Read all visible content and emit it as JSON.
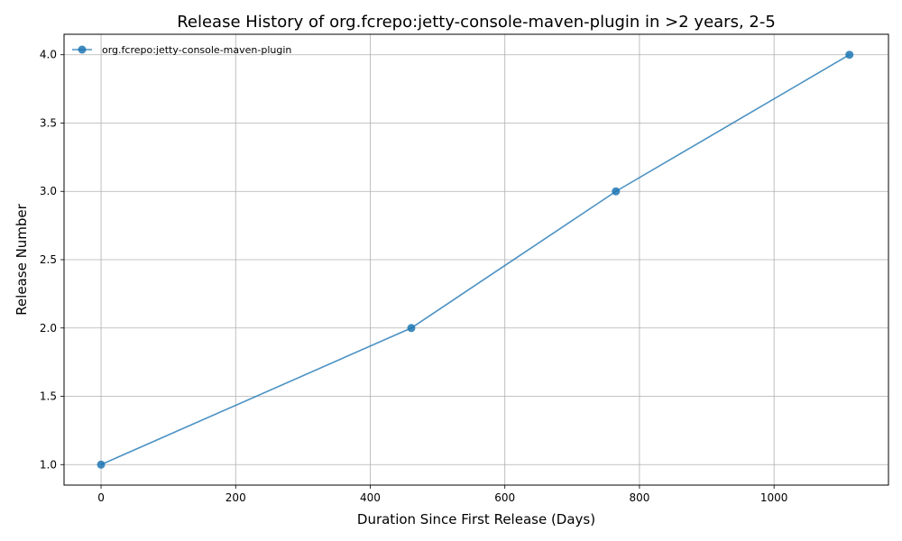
{
  "chart_data": {
    "type": "line",
    "title": "Release History of org.fcrepo:jetty-console-maven-plugin in >2 years, 2-5",
    "xlabel": "Duration Since First Release (Days)",
    "ylabel": "Release Number",
    "xlim": [
      -55,
      1170
    ],
    "ylim": [
      0.85,
      4.15
    ],
    "xticks": [
      0,
      200,
      400,
      600,
      800,
      1000
    ],
    "xtick_labels": [
      "0",
      "200",
      "400",
      "600",
      "800",
      "1000"
    ],
    "yticks": [
      1.0,
      1.5,
      2.0,
      2.5,
      3.0,
      3.5,
      4.0
    ],
    "ytick_labels": [
      "1.0",
      "1.5",
      "2.0",
      "2.5",
      "3.0",
      "3.5",
      "4.0"
    ],
    "grid": true,
    "legend_position": "top-left",
    "series": [
      {
        "name": "org.fcrepo:jetty-console-maven-plugin",
        "color": "#1f77b4",
        "marker": "circle",
        "x": [
          0,
          461,
          765,
          1112
        ],
        "y": [
          1,
          2,
          3,
          4
        ]
      }
    ]
  }
}
